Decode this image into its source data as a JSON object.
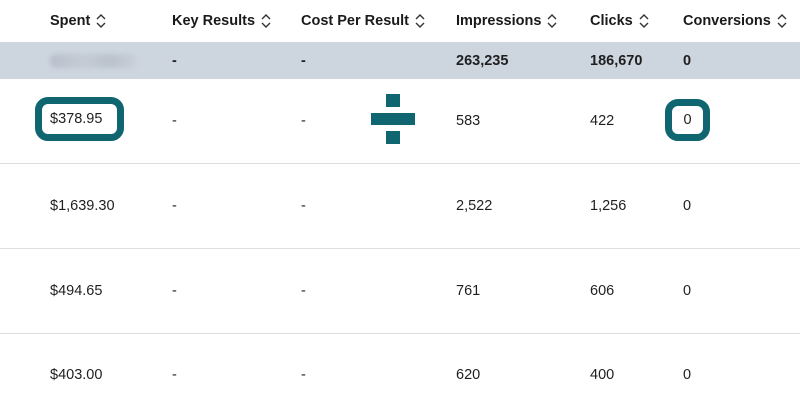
{
  "columns": [
    {
      "label": "Spent"
    },
    {
      "label": "Key Results"
    },
    {
      "label": "Cost Per Result"
    },
    {
      "label": "Impressions"
    },
    {
      "label": "Clicks"
    },
    {
      "label": "Conversions"
    }
  ],
  "totals": {
    "spent": "",
    "key_results": "-",
    "cost_per_result": "-",
    "impressions": "263,235",
    "clicks": "186,670",
    "conversions": "0"
  },
  "rows": [
    {
      "spent": "$378.95",
      "key_results": "-",
      "cost_per_result": "-",
      "impressions": "583",
      "clicks": "422",
      "conversions": "0"
    },
    {
      "spent": "$1,639.30",
      "key_results": "-",
      "cost_per_result": "-",
      "impressions": "2,522",
      "clicks": "1,256",
      "conversions": "0"
    },
    {
      "spent": "$494.65",
      "key_results": "-",
      "cost_per_result": "-",
      "impressions": "761",
      "clicks": "606",
      "conversions": "0"
    },
    {
      "spent": "$403.00",
      "key_results": "-",
      "cost_per_result": "-",
      "impressions": "620",
      "clicks": "400",
      "conversions": "0"
    }
  ],
  "annotations": {
    "accent_color": "#0f6670",
    "operator_icon": "divide-icon"
  }
}
